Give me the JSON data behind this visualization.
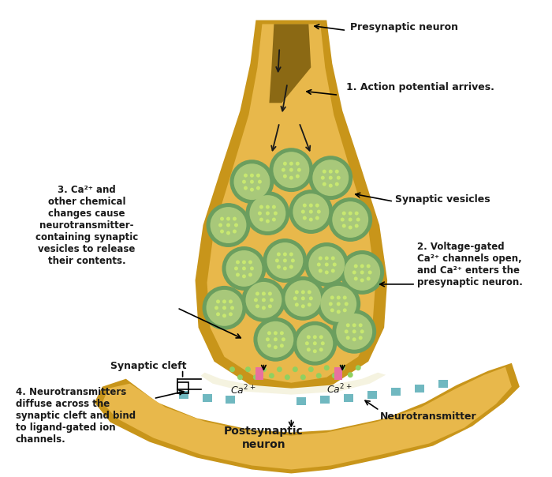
{
  "title": "",
  "bg_color": "#ffffff",
  "neuron_outer_color": "#D4A017",
  "neuron_inner_color": "#E8B84B",
  "neuron_highlight": "#F5D070",
  "terminal_outer_color": "#C8951A",
  "terminal_inner_color": "#DCA830",
  "vesicle_outer_color": "#6B9E5E",
  "vesicle_inner_color": "#A8C87A",
  "vesicle_dot_color": "#C8E870",
  "postsynaptic_outer": "#C8951A",
  "postsynaptic_inner": "#DCA830",
  "cleft_color": "#F0EED8",
  "ca_dot_color": "#90D060",
  "ca_channel_color": "#70B8C0",
  "arrow_color": "#1A1A1A",
  "text_color": "#1A1A1A",
  "label_fontsize": 9,
  "annotation_fontsize": 8.5,
  "annotations": {
    "presynaptic_neuron": "Presynaptic neuron",
    "action_potential": "1. Action potential arrives.",
    "synaptic_vesicles": "Synaptic vesicles",
    "voltage_gated": "2. Voltage-gated\nCa²⁺ channels open,\nand Ca²⁺ enters the\npresynaptic neuron.",
    "ca3": "3. Ca²⁺ and\nother chemical\nchanges cause\nneurotransmitter-\ncontaining synaptic\nvesicles to release\ntheir contents.",
    "synaptic_cleft": "Synaptic cleft",
    "neurotransmitters": "4. Neurotransmitters\ndiffuse across the\nsynaptic cleft and bind\nto ligand-gated ion\nchannels.",
    "postsynaptic": "Postsynaptic\nneuron",
    "neurotransmitter": "Neurotransmitter",
    "ca2plus_left": "Ca²⁺",
    "ca2plus_right": "Ca²⁺"
  }
}
